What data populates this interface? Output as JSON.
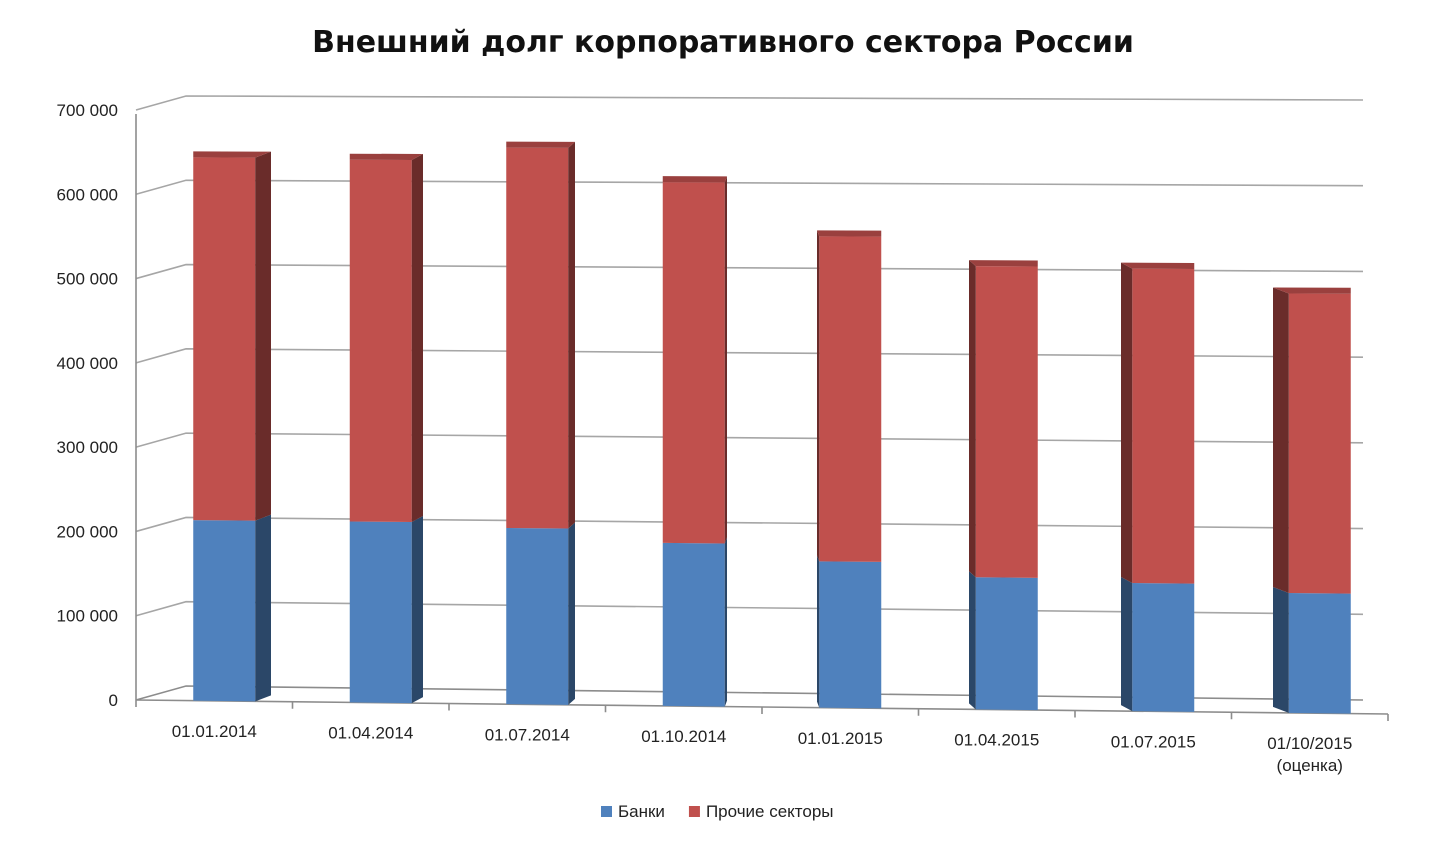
{
  "chart_data": {
    "type": "bar",
    "stacked": true,
    "three_d": true,
    "title": "Внешний долг корпоративного сектора России",
    "xlabel": "",
    "ylabel": "",
    "ylim": [
      0,
      700000
    ],
    "grid": true,
    "legend_position": "bottom",
    "y_tick_labels": [
      "0",
      "100 000",
      "200 000",
      "300 000",
      "400 000",
      "500 000",
      "600 000",
      "700 000"
    ],
    "categories": [
      "01.01.2014",
      "01.04.2014",
      "01.07.2014",
      "01.10.2014",
      "01.01.2015",
      "01.04.2015",
      "01.07.2015",
      "01/10/2015\n(оценка)"
    ],
    "series": [
      {
        "name": "Банки",
        "color": "#4f81bd",
        "values": [
          214000,
          214000,
          208000,
          192000,
          172000,
          155000,
          150000,
          140000
        ]
      },
      {
        "name": "Прочие секторы",
        "color": "#c0504d",
        "values": [
          430000,
          428000,
          449000,
          425000,
          382000,
          365000,
          368000,
          350000
        ]
      }
    ]
  }
}
